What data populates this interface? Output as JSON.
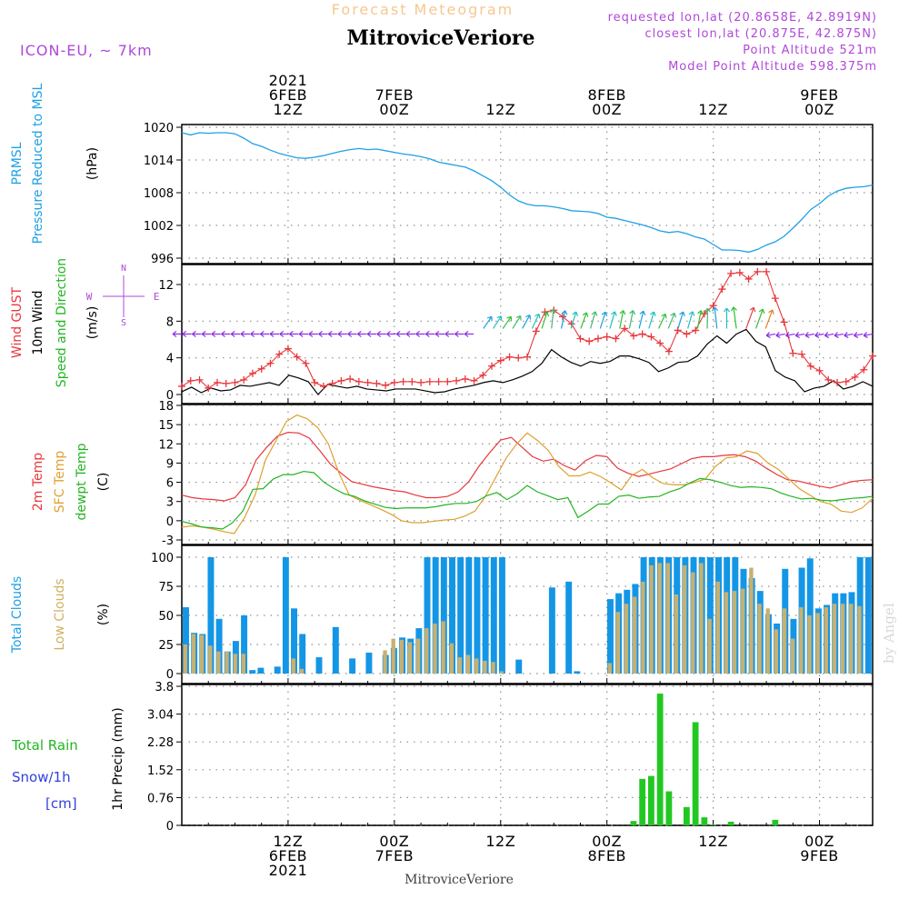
{
  "header": {
    "product": "Forecast Meteogram",
    "station": "MitroviceVeriore",
    "model": "ICON-EU, ~ 7km",
    "requested": "requested lon,lat (20.8658E, 42.8919N)",
    "closest": "closest lon,lat (20.875E, 42.875N)",
    "point_alt": "Point Altitude 521m",
    "model_alt": "Model Point Altitude 598.375m"
  },
  "footer": {
    "station": "MitroviceVeriore",
    "credit": "by Angel"
  },
  "time_axis": {
    "top": [
      {
        "hour": 12,
        "lines": [
          "2021",
          "6FEB",
          "12Z"
        ]
      },
      {
        "hour": 24,
        "lines": [
          "7FEB",
          "00Z"
        ]
      },
      {
        "hour": 36,
        "lines": [
          "12Z"
        ]
      },
      {
        "hour": 48,
        "lines": [
          "8FEB",
          "00Z"
        ]
      },
      {
        "hour": 60,
        "lines": [
          "12Z"
        ]
      },
      {
        "hour": 72,
        "lines": [
          "9FEB",
          "00Z"
        ]
      }
    ],
    "bottom": [
      {
        "hour": 12,
        "lines": [
          "12Z",
          "6FEB",
          "2021"
        ]
      },
      {
        "hour": 24,
        "lines": [
          "00Z",
          "7FEB"
        ]
      },
      {
        "hour": 36,
        "lines": [
          "12Z"
        ]
      },
      {
        "hour": 48,
        "lines": [
          "00Z",
          "8FEB"
        ]
      },
      {
        "hour": 60,
        "lines": [
          "12Z"
        ]
      },
      {
        "hour": 72,
        "lines": [
          "00Z",
          "9FEB"
        ]
      }
    ]
  },
  "panels": {
    "pressure": {
      "labels": [
        {
          "text": "PRMSL",
          "color": "#1ea0e6"
        },
        {
          "text": "Pressure Reduced to MSL",
          "color": "#1ea0e6"
        },
        {
          "text": "(hPa)",
          "color": "#000000"
        }
      ]
    },
    "wind": {
      "labels": [
        {
          "text": "Wind GUST",
          "color": "#e8373c"
        },
        {
          "text": "10m Wind",
          "color": "#000000"
        },
        {
          "text": "Speed and Direction",
          "color": "#22b522"
        },
        {
          "text": "(m/s)",
          "color": "#000000"
        }
      ],
      "compass": {
        "n": "N",
        "s": "S",
        "w": "W",
        "e": "E"
      }
    },
    "temp": {
      "labels": [
        {
          "text": "2m Temp",
          "color": "#e8373c"
        },
        {
          "text": "SFC Temp",
          "color": "#e0a030"
        },
        {
          "text": "dewpt Temp",
          "color": "#22b522"
        },
        {
          "text": "(C)",
          "color": "#000000"
        }
      ]
    },
    "clouds": {
      "labels": [
        {
          "text": "Total Clouds",
          "color": "#1ea0e6"
        },
        {
          "text": "Low Clouds",
          "color": "#d0b060"
        },
        {
          "text": "(%)",
          "color": "#000000"
        }
      ]
    },
    "precip": {
      "left_labels": [
        {
          "text": "Total  Rain",
          "color": "#22b522"
        },
        {
          "text": "Snow/1h",
          "color": "#3040e0"
        },
        {
          "text": "[cm]",
          "color": "#3040e0"
        }
      ],
      "axis_label": "1hr Precip (mm)"
    }
  },
  "colors": {
    "pressure": "#1ea0e6",
    "gust": "#e8373c",
    "wind": "#000000",
    "t2m": "#e8373c",
    "tsfc": "#e0a030",
    "dewpt": "#22b522",
    "total_clouds": "#1496e6",
    "low_clouds": "#c8b070",
    "rain": "#22c822",
    "frame": "#000000",
    "grid": "#909090",
    "title_orange": "#f5c890",
    "purple": "#b048d8"
  },
  "chart_data": [
    {
      "type": "line",
      "name": "pressure",
      "x_start_hour": 0,
      "x_end_hour": 78,
      "ylim": [
        995,
        1021
      ],
      "yticks": [
        "1020",
        "1014",
        "1008",
        "1002",
        "996"
      ],
      "ytick_values": [
        1020,
        1014,
        1008,
        1002,
        996
      ],
      "x": [
        0,
        1,
        2,
        3,
        4,
        5,
        6,
        7,
        8,
        9,
        10,
        11,
        12,
        13,
        14,
        15,
        16,
        17,
        18,
        19,
        20,
        21,
        22,
        23,
        24,
        25,
        26,
        27,
        28,
        29,
        30,
        31,
        32,
        33,
        34,
        35,
        36,
        37,
        38,
        39,
        40,
        41,
        42,
        43,
        44,
        45,
        46,
        47,
        48,
        49,
        50,
        51,
        52,
        53,
        54,
        55,
        56,
        57,
        58,
        59,
        60,
        61,
        62,
        63,
        64,
        65,
        66,
        67,
        68,
        69,
        70,
        71,
        72,
        73,
        74,
        75,
        76,
        77,
        78
      ],
      "values": [
        1019.0,
        1018.6,
        1019.0,
        1018.9,
        1019.0,
        1019.0,
        1018.8,
        1018.0,
        1017.0,
        1016.5,
        1015.8,
        1015.2,
        1014.8,
        1014.4,
        1014.3,
        1014.5,
        1014.8,
        1015.2,
        1015.6,
        1015.9,
        1016.1,
        1015.9,
        1016.0,
        1015.7,
        1015.4,
        1015.1,
        1014.9,
        1014.6,
        1014.2,
        1013.6,
        1013.3,
        1013.0,
        1012.7,
        1012.0,
        1011.1,
        1010.2,
        1009.0,
        1007.6,
        1006.5,
        1005.9,
        1005.6,
        1005.6,
        1005.4,
        1005.1,
        1004.7,
        1004.6,
        1004.5,
        1004.2,
        1003.5,
        1003.3,
        1002.9,
        1002.5,
        1002.1,
        1001.6,
        1001.0,
        1000.7,
        1000.9,
        1000.5,
        999.9,
        999.5,
        998.5,
        997.5,
        997.5,
        997.4,
        997.1,
        997.6,
        998.4,
        999.0,
        1000.0,
        1001.5,
        1003.1,
        1004.9,
        1006.0,
        1007.4,
        1008.3,
        1008.8,
        1009.0,
        1009.1,
        1009.4
      ]
    },
    {
      "type": "line",
      "name": "wind",
      "x_start_hour": 0,
      "x_end_hour": 78,
      "ylim": [
        0,
        14
      ],
      "yticks": [
        "12",
        "8",
        "4",
        "0"
      ],
      "ytick_values": [
        12,
        8,
        4,
        0
      ],
      "series": [
        {
          "name": "Wind GUST",
          "color": "#e8373c",
          "values": [
            0.9,
            1.5,
            1.6,
            0.7,
            1.3,
            1.2,
            1.3,
            1.6,
            2.3,
            2.8,
            3.4,
            4.4,
            5.0,
            4.1,
            3.4,
            1.3,
            0.9,
            1.2,
            1.5,
            1.7,
            1.4,
            1.3,
            1.2,
            1.0,
            1.3,
            1.4,
            1.4,
            1.3,
            1.4,
            1.4,
            1.4,
            1.5,
            1.7,
            1.5,
            2.1,
            3.1,
            3.7,
            4.1,
            4.0,
            4.1,
            6.9,
            9.0,
            9.2,
            8.5,
            7.7,
            6.1,
            5.8,
            6.1,
            6.3,
            6.1,
            7.2,
            6.4,
            6.6,
            6.3,
            5.6,
            4.7,
            7.0,
            6.6,
            7.0,
            8.8,
            9.7,
            11.5,
            13.2,
            13.3,
            12.6,
            13.4,
            13.4,
            10.5,
            7.9,
            4.5,
            4.4,
            3.1,
            2.6,
            1.6,
            1.3,
            1.4,
            1.9,
            2.7,
            4.2
          ]
        },
        {
          "name": "10m Wind",
          "color": "#000000",
          "values": [
            0.3,
            0.8,
            0.2,
            0.7,
            0.4,
            0.5,
            1.0,
            0.9,
            1.1,
            1.3,
            1.0,
            2.1,
            1.8,
            1.4,
            0.0,
            1.1,
            0.9,
            0.7,
            0.9,
            0.6,
            0.5,
            0.4,
            0.6,
            0.6,
            0.6,
            0.4,
            0.2,
            0.3,
            0.6,
            0.8,
            1.0,
            1.3,
            1.5,
            1.3,
            1.6,
            2.0,
            2.5,
            3.4,
            4.9,
            4.1,
            3.5,
            3.1,
            3.6,
            3.4,
            3.6,
            4.2,
            4.2,
            3.9,
            3.5,
            2.5,
            2.9,
            3.5,
            3.6,
            4.2,
            5.5,
            6.4,
            5.6,
            6.6,
            7.1,
            5.8,
            5.2,
            2.6,
            1.9,
            1.5,
            0.3,
            0.7,
            0.9,
            1.5,
            0.6,
            0.9,
            1.4,
            0.9
          ]
        }
      ]
    },
    {
      "type": "line",
      "name": "temperature",
      "x_start_hour": 0,
      "x_end_hour": 78,
      "ylim": [
        -3,
        18
      ],
      "yticks": [
        "18",
        "15",
        "12",
        "9",
        "6",
        "3",
        "0",
        "-3"
      ],
      "ytick_values": [
        18,
        15,
        12,
        9,
        6,
        3,
        0,
        -3
      ],
      "series": [
        {
          "name": "2m Temp",
          "color": "#e8373c",
          "values": [
            4.0,
            3.6,
            3.4,
            3.3,
            3.1,
            3.6,
            5.6,
            9.5,
            11.5,
            13.2,
            13.8,
            13.7,
            12.9,
            10.9,
            8.8,
            7.4,
            6.1,
            5.7,
            5.3,
            5.0,
            4.7,
            4.5,
            4.0,
            3.6,
            3.6,
            3.8,
            4.5,
            6.1,
            8.6,
            10.7,
            12.6,
            13.0,
            11.5,
            10.0,
            9.3,
            9.6,
            8.6,
            7.9,
            9.4,
            10.2,
            10.0,
            8.2,
            7.4,
            6.9,
            7.3,
            7.7,
            8.1,
            8.9,
            9.7,
            10.0,
            10.0,
            10.2,
            10.3,
            10.0,
            9.3,
            8.2,
            7.2,
            6.4,
            6.2,
            5.8,
            5.4,
            5.1,
            5.6,
            6.1,
            6.3,
            6.4
          ]
        },
        {
          "name": "SFC Temp",
          "color": "#e0a030",
          "values": [
            -1.0,
            -0.8,
            -1.0,
            -1.3,
            -1.7,
            -2.0,
            0.5,
            4.0,
            9.5,
            12.5,
            15.5,
            16.5,
            15.9,
            14.5,
            12.0,
            7.5,
            4.0,
            3.2,
            2.5,
            1.8,
            1.0,
            0.0,
            -0.3,
            -0.3,
            -0.1,
            0.1,
            0.2,
            0.7,
            1.5,
            3.8,
            6.8,
            9.8,
            12.0,
            13.7,
            12.5,
            11.0,
            8.5,
            7.0,
            7.0,
            7.6,
            6.9,
            5.9,
            4.8,
            7.1,
            8.0,
            6.7,
            5.8,
            5.6,
            5.6,
            6.0,
            6.5,
            8.5,
            9.8,
            10.0,
            10.9,
            10.5,
            9.0,
            8.0,
            6.5,
            5.0,
            4.0,
            3.0,
            2.6,
            1.5,
            1.3,
            2.0,
            3.5
          ]
        },
        {
          "name": "dewpt Temp",
          "color": "#22b522",
          "values": [
            -0.1,
            -0.5,
            -1.0,
            -1.1,
            -1.3,
            -0.3,
            1.5,
            4.9,
            5.0,
            6.5,
            7.2,
            7.2,
            7.7,
            7.5,
            6.0,
            5.0,
            4.2,
            3.8,
            3.1,
            2.6,
            2.1,
            1.9,
            2.0,
            2.0,
            2.0,
            2.2,
            2.5,
            2.7,
            2.7,
            3.0,
            3.9,
            4.4,
            3.3,
            4.2,
            5.5,
            4.5,
            3.9,
            3.3,
            3.6,
            0.5,
            1.5,
            2.6,
            2.6,
            3.8,
            4.0,
            3.5,
            3.7,
            3.8,
            4.5,
            5.0,
            5.9,
            6.6,
            6.4,
            6.0,
            5.5,
            5.2,
            5.3,
            5.2,
            5.0,
            4.3,
            3.8,
            3.4,
            3.5,
            3.2,
            3.1,
            3.3,
            3.5,
            3.6,
            3.8
          ]
        }
      ]
    },
    {
      "type": "bar",
      "name": "clouds",
      "x_start_hour": 0,
      "x_end_hour": 78,
      "ylim": [
        0,
        100
      ],
      "yticks": [
        "100",
        "75",
        "50",
        "25",
        "0"
      ],
      "ytick_values": [
        100,
        75,
        50,
        25,
        0
      ],
      "series": [
        {
          "name": "Total Clouds",
          "color": "#1496e6",
          "values": [
            57,
            35,
            34,
            100,
            47,
            19,
            28,
            50,
            3,
            5,
            0,
            6,
            100,
            56,
            34,
            0,
            14,
            0,
            40,
            0,
            13,
            0,
            18,
            0,
            16,
            22,
            31,
            30,
            39,
            100,
            100,
            100,
            100,
            100,
            100,
            100,
            100,
            100,
            100,
            0,
            12,
            0,
            0,
            0,
            74,
            0,
            79,
            2,
            0,
            0,
            0,
            64,
            69,
            72,
            77,
            100,
            100,
            100,
            100,
            100,
            100,
            100,
            100,
            100,
            100,
            100,
            100,
            90,
            82,
            71,
            51,
            43,
            90,
            47,
            91,
            99,
            56,
            59,
            69,
            69,
            70,
            100,
            100
          ]
        },
        {
          "name": "Low Clouds",
          "color": "#c8b070",
          "values": [
            25,
            34,
            33,
            24,
            19,
            19,
            17,
            17,
            0,
            0,
            0,
            0,
            0,
            13,
            4,
            0,
            0,
            0,
            0,
            0,
            0,
            0,
            0,
            0,
            20,
            30,
            29,
            27,
            30,
            39,
            43,
            45,
            26,
            14,
            16,
            13,
            11,
            10,
            2,
            0,
            0,
            0,
            0,
            0,
            0,
            0,
            0,
            0,
            0,
            0,
            0,
            9,
            53,
            60,
            66,
            79,
            93,
            95,
            95,
            68,
            93,
            87,
            95,
            47,
            79,
            70,
            71,
            73,
            91,
            60,
            56,
            38,
            56,
            30,
            57,
            50,
            52,
            57,
            60,
            60,
            60,
            58
          ]
        }
      ]
    },
    {
      "type": "bar",
      "name": "precip",
      "x_start_hour": 0,
      "x_end_hour": 78,
      "ylim": [
        0,
        3.8
      ],
      "yticks": [
        "3.8",
        "3.04",
        "2.28",
        "1.52",
        "0.76",
        "0"
      ],
      "ytick_values": [
        3.8,
        3.04,
        2.28,
        1.52,
        0.76,
        0
      ],
      "series": [
        {
          "name": "Total Rain",
          "color": "#22c822",
          "x": [
            51,
            52,
            53,
            54,
            55,
            56,
            57,
            58,
            59,
            60,
            62,
            67
          ],
          "values": [
            0.12,
            1.27,
            1.35,
            3.6,
            0.93,
            0,
            0.5,
            2.82,
            0.22,
            0.02,
            0.1,
            0.15
          ]
        }
      ]
    }
  ]
}
